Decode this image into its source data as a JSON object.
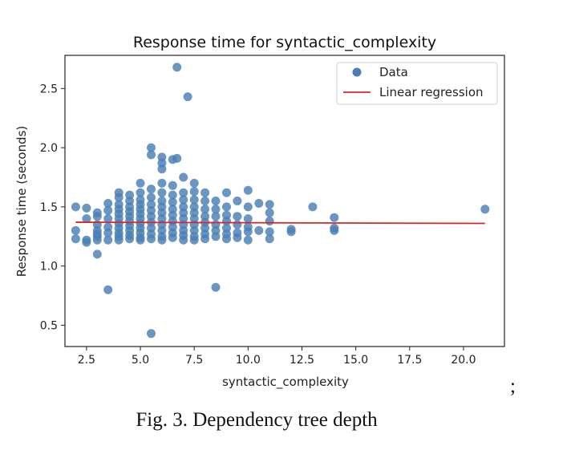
{
  "chart_data": {
    "type": "scatter",
    "title": "Response time for syntactic_complexity",
    "xlabel": "syntactic_complexity",
    "ylabel": "Response time (seconds)",
    "xlim": [
      1.5,
      21.9
    ],
    "ylim": [
      0.32,
      2.78
    ],
    "xticks": [
      2.5,
      5.0,
      7.5,
      10.0,
      12.5,
      15.0,
      17.5,
      20.0
    ],
    "xtick_labels": [
      "2.5",
      "5.0",
      "7.5",
      "10.0",
      "12.5",
      "15.0",
      "17.5",
      "20.0"
    ],
    "yticks": [
      0.5,
      1.0,
      1.5,
      2.0,
      2.5
    ],
    "ytick_labels": [
      "0.5",
      "1.0",
      "1.5",
      "2.0",
      "2.5"
    ],
    "grid": false,
    "legend": {
      "position": "top-right",
      "entries": [
        "Data",
        "Linear regression"
      ]
    },
    "colors": {
      "data": "#4a7fb5",
      "regression": "#d62728"
    },
    "series": [
      {
        "name": "Data",
        "points": [
          [
            2,
            1.5
          ],
          [
            2,
            1.3
          ],
          [
            2,
            1.23
          ],
          [
            2.5,
            1.49
          ],
          [
            2.5,
            1.4
          ],
          [
            2.5,
            1.22
          ],
          [
            2.5,
            1.2
          ],
          [
            3,
            1.45
          ],
          [
            3,
            1.42
          ],
          [
            3,
            1.35
          ],
          [
            3,
            1.3
          ],
          [
            3,
            1.27
          ],
          [
            3,
            1.25
          ],
          [
            3,
            1.22
          ],
          [
            3,
            1.1
          ],
          [
            3.5,
            1.53
          ],
          [
            3.5,
            1.47
          ],
          [
            3.5,
            1.4
          ],
          [
            3.5,
            1.33
          ],
          [
            3.5,
            1.28
          ],
          [
            3.5,
            1.22
          ],
          [
            3.5,
            0.8
          ],
          [
            4,
            1.62
          ],
          [
            4,
            1.58
          ],
          [
            4,
            1.52
          ],
          [
            4,
            1.48
          ],
          [
            4,
            1.44
          ],
          [
            4,
            1.4
          ],
          [
            4,
            1.36
          ],
          [
            4,
            1.32
          ],
          [
            4,
            1.28
          ],
          [
            4,
            1.25
          ],
          [
            4,
            1.22
          ],
          [
            4.5,
            1.6
          ],
          [
            4.5,
            1.55
          ],
          [
            4.5,
            1.5
          ],
          [
            4.5,
            1.46
          ],
          [
            4.5,
            1.42
          ],
          [
            4.5,
            1.38
          ],
          [
            4.5,
            1.34
          ],
          [
            4.5,
            1.3
          ],
          [
            4.5,
            1.26
          ],
          [
            4.5,
            1.23
          ],
          [
            5,
            1.7
          ],
          [
            5,
            1.62
          ],
          [
            5,
            1.56
          ],
          [
            5,
            1.52
          ],
          [
            5,
            1.48
          ],
          [
            5,
            1.44
          ],
          [
            5,
            1.4
          ],
          [
            5,
            1.36
          ],
          [
            5,
            1.32
          ],
          [
            5,
            1.28
          ],
          [
            5,
            1.24
          ],
          [
            5,
            1.22
          ],
          [
            5.5,
            2.0
          ],
          [
            5.5,
            1.94
          ],
          [
            5.5,
            1.65
          ],
          [
            5.5,
            1.58
          ],
          [
            5.5,
            1.52
          ],
          [
            5.5,
            1.47
          ],
          [
            5.5,
            1.42
          ],
          [
            5.5,
            1.37
          ],
          [
            5.5,
            1.32
          ],
          [
            5.5,
            1.27
          ],
          [
            5.5,
            1.23
          ],
          [
            5.5,
            0.43
          ],
          [
            6,
            1.92
          ],
          [
            6,
            1.87
          ],
          [
            6,
            1.82
          ],
          [
            6,
            1.7
          ],
          [
            6,
            1.62
          ],
          [
            6,
            1.55
          ],
          [
            6,
            1.5
          ],
          [
            6,
            1.45
          ],
          [
            6,
            1.4
          ],
          [
            6,
            1.35
          ],
          [
            6,
            1.3
          ],
          [
            6,
            1.25
          ],
          [
            6,
            1.22
          ],
          [
            6.5,
            1.9
          ],
          [
            6.5,
            1.68
          ],
          [
            6.5,
            1.6
          ],
          [
            6.5,
            1.54
          ],
          [
            6.5,
            1.48
          ],
          [
            6.5,
            1.43
          ],
          [
            6.5,
            1.38
          ],
          [
            6.5,
            1.33
          ],
          [
            6.5,
            1.28
          ],
          [
            6.5,
            1.24
          ],
          [
            6.7,
            2.68
          ],
          [
            6.7,
            1.91
          ],
          [
            7,
            1.75
          ],
          [
            7,
            1.62
          ],
          [
            7,
            1.56
          ],
          [
            7,
            1.5
          ],
          [
            7,
            1.45
          ],
          [
            7,
            1.4
          ],
          [
            7,
            1.35
          ],
          [
            7,
            1.3
          ],
          [
            7,
            1.26
          ],
          [
            7,
            1.22
          ],
          [
            7.2,
            2.43
          ],
          [
            7.5,
            1.7
          ],
          [
            7.5,
            1.63
          ],
          [
            7.5,
            1.56
          ],
          [
            7.5,
            1.5
          ],
          [
            7.5,
            1.45
          ],
          [
            7.5,
            1.4
          ],
          [
            7.5,
            1.35
          ],
          [
            7.5,
            1.3
          ],
          [
            7.5,
            1.25
          ],
          [
            7.5,
            1.22
          ],
          [
            8,
            1.62
          ],
          [
            8,
            1.55
          ],
          [
            8,
            1.48
          ],
          [
            8,
            1.42
          ],
          [
            8,
            1.37
          ],
          [
            8,
            1.32
          ],
          [
            8,
            1.27
          ],
          [
            8,
            1.23
          ],
          [
            8.5,
            1.55
          ],
          [
            8.5,
            1.48
          ],
          [
            8.5,
            1.42
          ],
          [
            8.5,
            1.35
          ],
          [
            8.5,
            1.3
          ],
          [
            8.5,
            1.25
          ],
          [
            8.5,
            0.82
          ],
          [
            9,
            1.62
          ],
          [
            9,
            1.5
          ],
          [
            9,
            1.43
          ],
          [
            9,
            1.38
          ],
          [
            9,
            1.32
          ],
          [
            9,
            1.27
          ],
          [
            9,
            1.23
          ],
          [
            9.5,
            1.55
          ],
          [
            9.5,
            1.42
          ],
          [
            9.5,
            1.35
          ],
          [
            9.5,
            1.28
          ],
          [
            9.5,
            1.24
          ],
          [
            10,
            1.64
          ],
          [
            10,
            1.5
          ],
          [
            10,
            1.4
          ],
          [
            10,
            1.33
          ],
          [
            10,
            1.29
          ],
          [
            10,
            1.22
          ],
          [
            10.5,
            1.53
          ],
          [
            10.5,
            1.3
          ],
          [
            11,
            1.52
          ],
          [
            11,
            1.45
          ],
          [
            11,
            1.38
          ],
          [
            11,
            1.29
          ],
          [
            11,
            1.23
          ],
          [
            12,
            1.31
          ],
          [
            12,
            1.29
          ],
          [
            13,
            1.5
          ],
          [
            14,
            1.41
          ],
          [
            14,
            1.32
          ],
          [
            14,
            1.3
          ],
          [
            21,
            1.48
          ]
        ]
      },
      {
        "name": "Linear regression",
        "x": [
          2,
          21
        ],
        "y": [
          1.37,
          1.36
        ]
      }
    ]
  },
  "caption": {
    "text": "Fig. 3. Dependency tree depth",
    "trailing": ";"
  }
}
